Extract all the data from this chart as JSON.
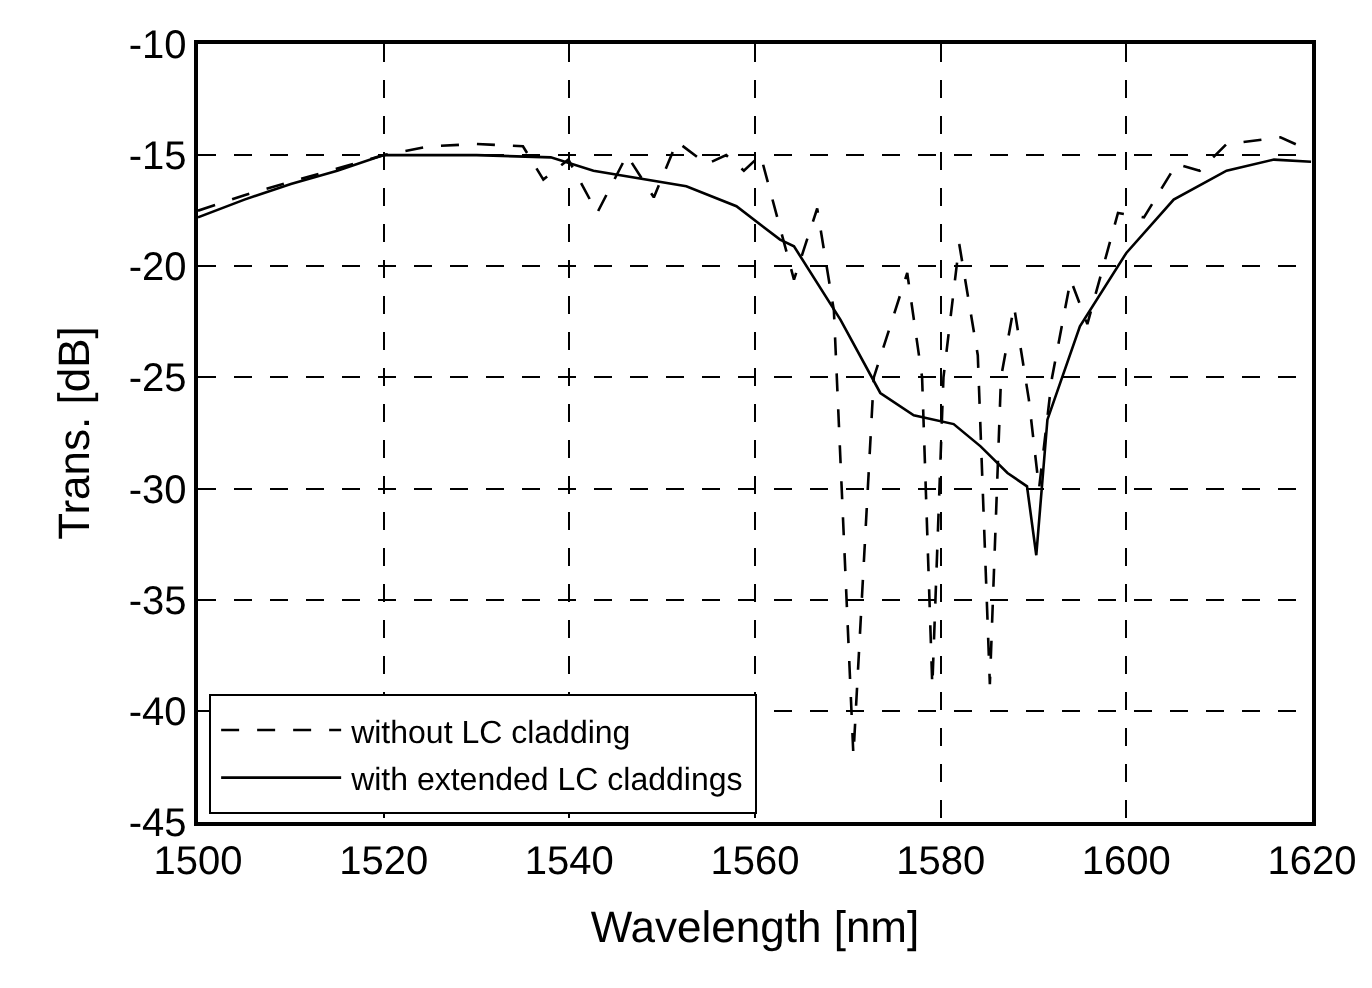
{
  "chart_data": {
    "type": "line",
    "xlabel": "Wavelength [nm]",
    "ylabel": "Trans. [dB]",
    "xlim": [
      1500,
      1620
    ],
    "xticks": [
      1500,
      1520,
      1540,
      1560,
      1580,
      1600,
      1620
    ],
    "ylim": [
      -45,
      -10
    ],
    "yticks": [
      -45,
      -40,
      -35,
      -30,
      -25,
      -20,
      -15,
      -10
    ],
    "grid": true,
    "legend": "bottom left",
    "marker": "none",
    "series": [
      {
        "name": "without LC cladding",
        "color": "#000000",
        "line_style": "dashed",
        "x": [
          1500,
          1505,
          1510,
          1515,
          1520,
          1525,
          1530,
          1535,
          1537.2,
          1539.9,
          1543,
          1546.2,
          1549.1,
          1551.6,
          1554.8,
          1556.9,
          1558.8,
          1560.6,
          1564.2,
          1566.7,
          1568.5,
          1570.6,
          1572.8,
          1576.4,
          1578,
          1579.1,
          1580.3,
          1582,
          1584,
          1585.3,
          1586.5,
          1587.9,
          1589.5,
          1590.6,
          1592,
          1594,
          1595.8,
          1599.1,
          1601.9,
          1605.4,
          1607.9,
          1610.8,
          1616.6,
          1619.8
        ],
        "values": [
          -17.5,
          -16.8,
          -16.2,
          -15.6,
          -15,
          -14.6,
          -14.5,
          -14.6,
          -16.1,
          -15.2,
          -17.6,
          -15,
          -16.9,
          -14.4,
          -15.4,
          -15,
          -15.7,
          -15,
          -20.6,
          -17.4,
          -22,
          -42,
          -25,
          -20.3,
          -25,
          -38.9,
          -25,
          -19,
          -24,
          -38.8,
          -25,
          -21.8,
          -26,
          -30,
          -25,
          -20.6,
          -22.6,
          -17.6,
          -17.8,
          -15.4,
          -15.7,
          -14.5,
          -14.2,
          -14.8
        ]
      },
      {
        "name": "with extended LC claddings",
        "color": "#000000",
        "line_style": "solid",
        "x": [
          1500,
          1505,
          1510,
          1515,
          1520,
          1530,
          1538,
          1542.6,
          1552.6,
          1558,
          1562.7,
          1564.2,
          1569.2,
          1573.5,
          1577.1,
          1581.4,
          1584.3,
          1587.2,
          1589.3,
          1590.3,
          1591.5,
          1595,
          1600,
          1605.1,
          1610.8,
          1615.9,
          1619.9
        ],
        "values": [
          -17.8,
          -17,
          -16.3,
          -15.7,
          -15,
          -15,
          -15.1,
          -15.7,
          -16.4,
          -17.3,
          -18.8,
          -19.1,
          -22.4,
          -25.7,
          -26.7,
          -27.1,
          -28.1,
          -29.3,
          -29.9,
          -33,
          -26.9,
          -22.7,
          -19.4,
          -17,
          -15.7,
          -15.2,
          -15.3
        ]
      }
    ]
  }
}
